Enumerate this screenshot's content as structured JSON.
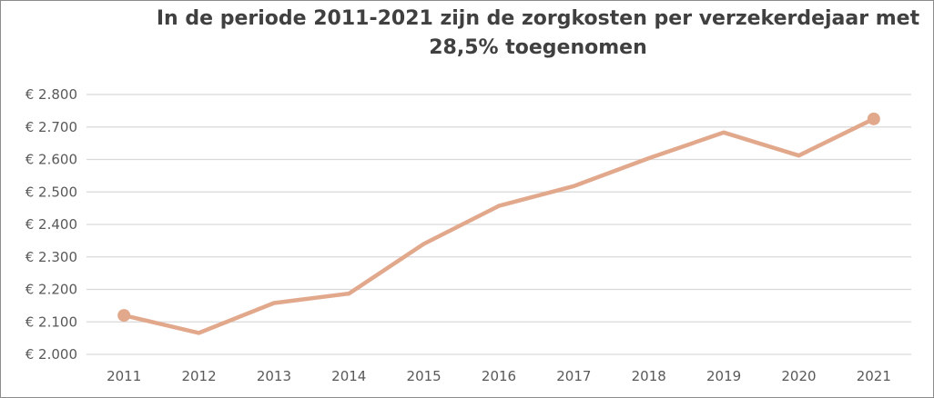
{
  "chart_data": {
    "type": "line",
    "title": [
      "In de periode 2011-2021 zijn de zorgkosten per verzekerdejaar met",
      "28,5% toegenomen"
    ],
    "xlabel": "",
    "ylabel": "",
    "categories": [
      "2011",
      "2012",
      "2013",
      "2014",
      "2015",
      "2016",
      "2017",
      "2018",
      "2019",
      "2020",
      "2021"
    ],
    "series": [
      {
        "name": "",
        "values": [
          2120,
          2066,
          2158,
          2187,
          2340,
          2457,
          2518,
          2604,
          2683,
          2612,
          2725
        ],
        "markers": [
          "2011",
          "2021"
        ]
      }
    ],
    "ylim": [
      2000,
      2800
    ],
    "yticks": [
      2000,
      2100,
      2200,
      2300,
      2400,
      2500,
      2600,
      2700,
      2800
    ],
    "ytick_labels": [
      "€ 2.000",
      "€ 2.100",
      "€ 2.200",
      "€ 2.300",
      "€ 2.400",
      "€ 2.500",
      "€ 2.600",
      "€ 2.700",
      "€ 2.800"
    ],
    "grid": true,
    "legend": "none",
    "colors": {
      "line": "#e2a88c",
      "grid": "#d9d9d9",
      "text": "#595959"
    }
  }
}
